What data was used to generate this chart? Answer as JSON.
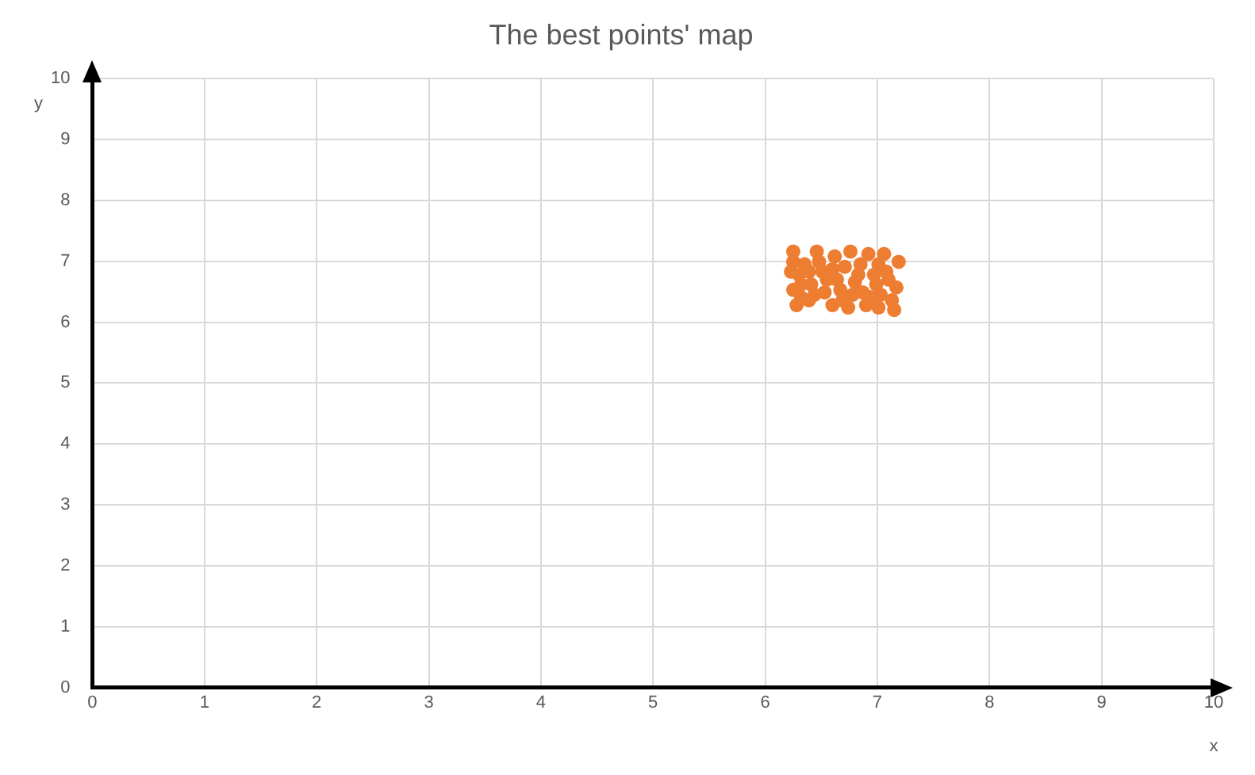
{
  "chart_data": {
    "type": "scatter",
    "title": "The best points' map",
    "xlabel": "x",
    "ylabel": "y",
    "xlim": [
      0,
      10
    ],
    "xticks": [
      0,
      1,
      2,
      3,
      4,
      5,
      6,
      7,
      8,
      9,
      10
    ],
    "ylim": [
      0,
      10
    ],
    "yticks": [
      0,
      1,
      2,
      3,
      4,
      5,
      6,
      7,
      8,
      9,
      10
    ],
    "grid": true,
    "legend": false,
    "marker": "circle",
    "series": [
      {
        "color": "#ed7d31",
        "x": [
          6.25,
          6.25,
          6.23,
          6.25,
          6.28,
          6.35,
          6.39,
          6.41,
          6.46,
          6.48,
          6.51,
          6.53,
          6.62,
          6.6,
          6.64,
          6.67,
          6.69,
          6.74,
          6.76,
          6.8,
          6.85,
          6.87,
          6.9,
          6.92,
          6.97,
          6.99,
          7.01,
          7.03,
          7.06,
          7.1,
          7.13,
          7.15,
          7.19,
          7.17,
          6.32,
          6.39,
          6.55,
          6.71,
          6.83,
          6.94,
          7.08,
          6.44,
          6.32,
          6.78,
          7.01,
          6.6,
          6.3
        ],
        "values": [
          7.16,
          6.99,
          6.83,
          6.53,
          6.28,
          6.95,
          6.83,
          6.62,
          7.16,
          6.99,
          6.83,
          6.49,
          7.08,
          6.87,
          6.7,
          6.53,
          6.36,
          6.24,
          7.16,
          6.66,
          6.95,
          6.49,
          6.28,
          7.12,
          6.78,
          6.62,
          6.95,
          6.45,
          7.12,
          6.7,
          6.36,
          6.2,
          6.99,
          6.57,
          6.41,
          6.36,
          6.7,
          6.91,
          6.78,
          6.41,
          6.83,
          6.45,
          6.62,
          6.45,
          6.24,
          6.28,
          6.78
        ]
      }
    ]
  }
}
